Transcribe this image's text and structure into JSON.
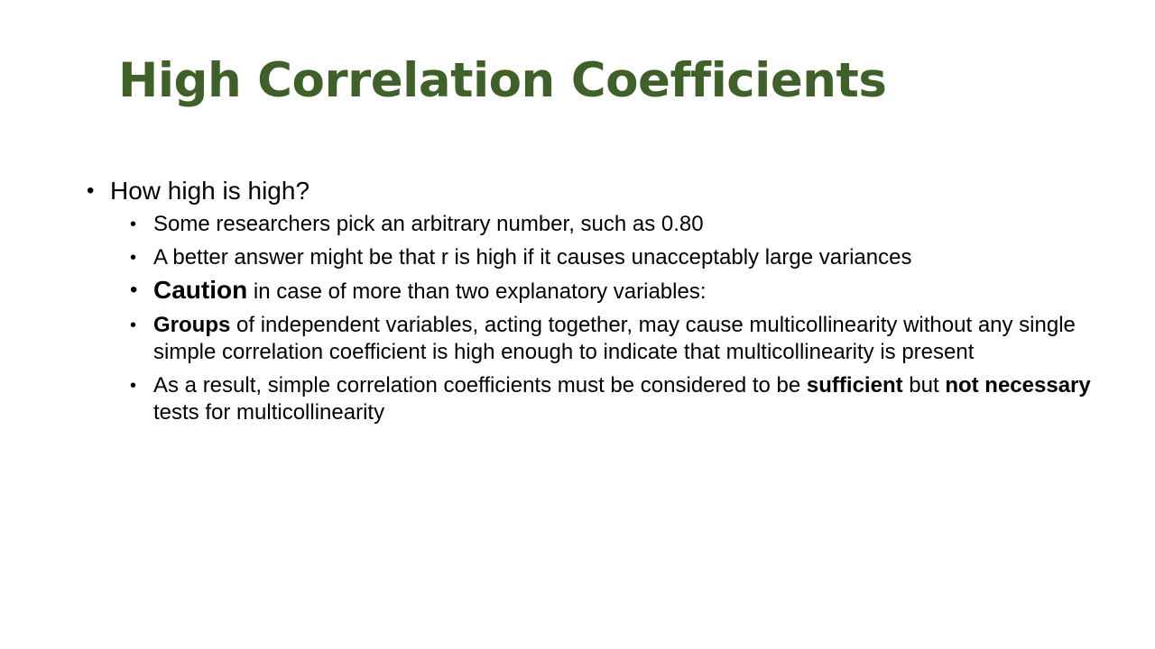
{
  "slide": {
    "title": "High Correlation Coefficients",
    "title_color": "#3f6129",
    "bullets": {
      "main": "How high is high?",
      "sub1": "Some researchers pick an arbitrary number, such as 0.80",
      "sub2": "A better answer might be that r is high if it causes unacceptably large variances",
      "sub3_bold": "Caution",
      "sub3_rest": " in case of more than two explanatory variables:",
      "sub4_bold": "Groups",
      "sub4_rest": " of independent variables, acting together, may cause multicollinearity without any single simple correlation coefficient is high enough to indicate that multicollinearity is present",
      "sub5_start": "As a result, simple correlation coefficients must be considered to be ",
      "sub5_bold1": "sufficient",
      "sub5_mid": " but ",
      "sub5_bold2": "not necessary",
      "sub5_end": " tests for multicollinearity"
    },
    "bullet_char": "•"
  }
}
